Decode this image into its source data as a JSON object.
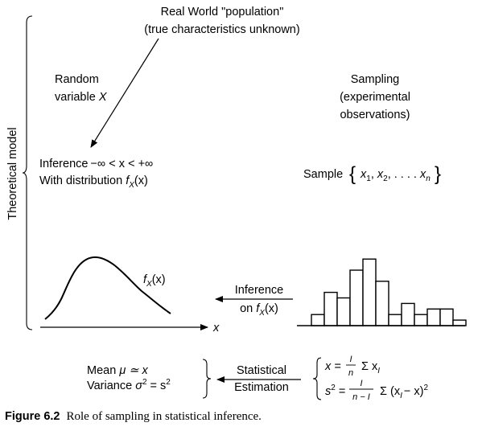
{
  "population": {
    "line1": "Real World \"population\"",
    "line2": "(true characteristics unknown)"
  },
  "random_variable": {
    "line1": "Random",
    "line2_text": "variable ",
    "line2_var": "X"
  },
  "sampling": {
    "line1": "Sampling",
    "line2": "(experimental",
    "line3": "observations)"
  },
  "inference_left": {
    "word": "Inference",
    "range": "−∞  < x < +∞",
    "dist_text": "With distribution ",
    "dist_f": "f",
    "dist_sub": "X",
    "dist_arg": "(x)"
  },
  "sample": {
    "label": "Sample",
    "x": "x",
    "s1": "1",
    "s2": "2",
    "dots": ". . . .",
    "sn": "n"
  },
  "side_label": "Theoretical model",
  "curve_label": {
    "f": "f",
    "sub": "X",
    "arg": "(x)"
  },
  "x_axis_label": "x",
  "inference_on": {
    "line1": "Inference",
    "line2_text": "on ",
    "f": "f",
    "sub": "X",
    "arg": "(x)"
  },
  "histogram": {
    "values": [
      1,
      3,
      2.5,
      5,
      6,
      4,
      1,
      2,
      1,
      1.5,
      1.5,
      0.5
    ]
  },
  "estimates": {
    "mean_text": "Mean ",
    "mean_sym": "μ ≃ x",
    "var_text": "Variance ",
    "var_sym": "σ",
    "var_eq": " = s"
  },
  "statistical": {
    "line1": "Statistical",
    "line2": "Estimation"
  },
  "formulas": {
    "x_eq": "x =",
    "frac1_num": "I",
    "frac1_den": "n",
    "sum1": "Σ x",
    "sum1_sub": "I",
    "s_eq": "s",
    "s_sup": "2",
    "eq": " =",
    "frac2_num": "I",
    "frac2_den": "n − I",
    "sum2": "Σ (x",
    "sum2_sub": "I",
    "sum2_tail": "− x)",
    "sum2_sup": "2"
  },
  "caption": {
    "figure": "Figure 6.2",
    "text": "Role of sampling in statistical inference."
  }
}
